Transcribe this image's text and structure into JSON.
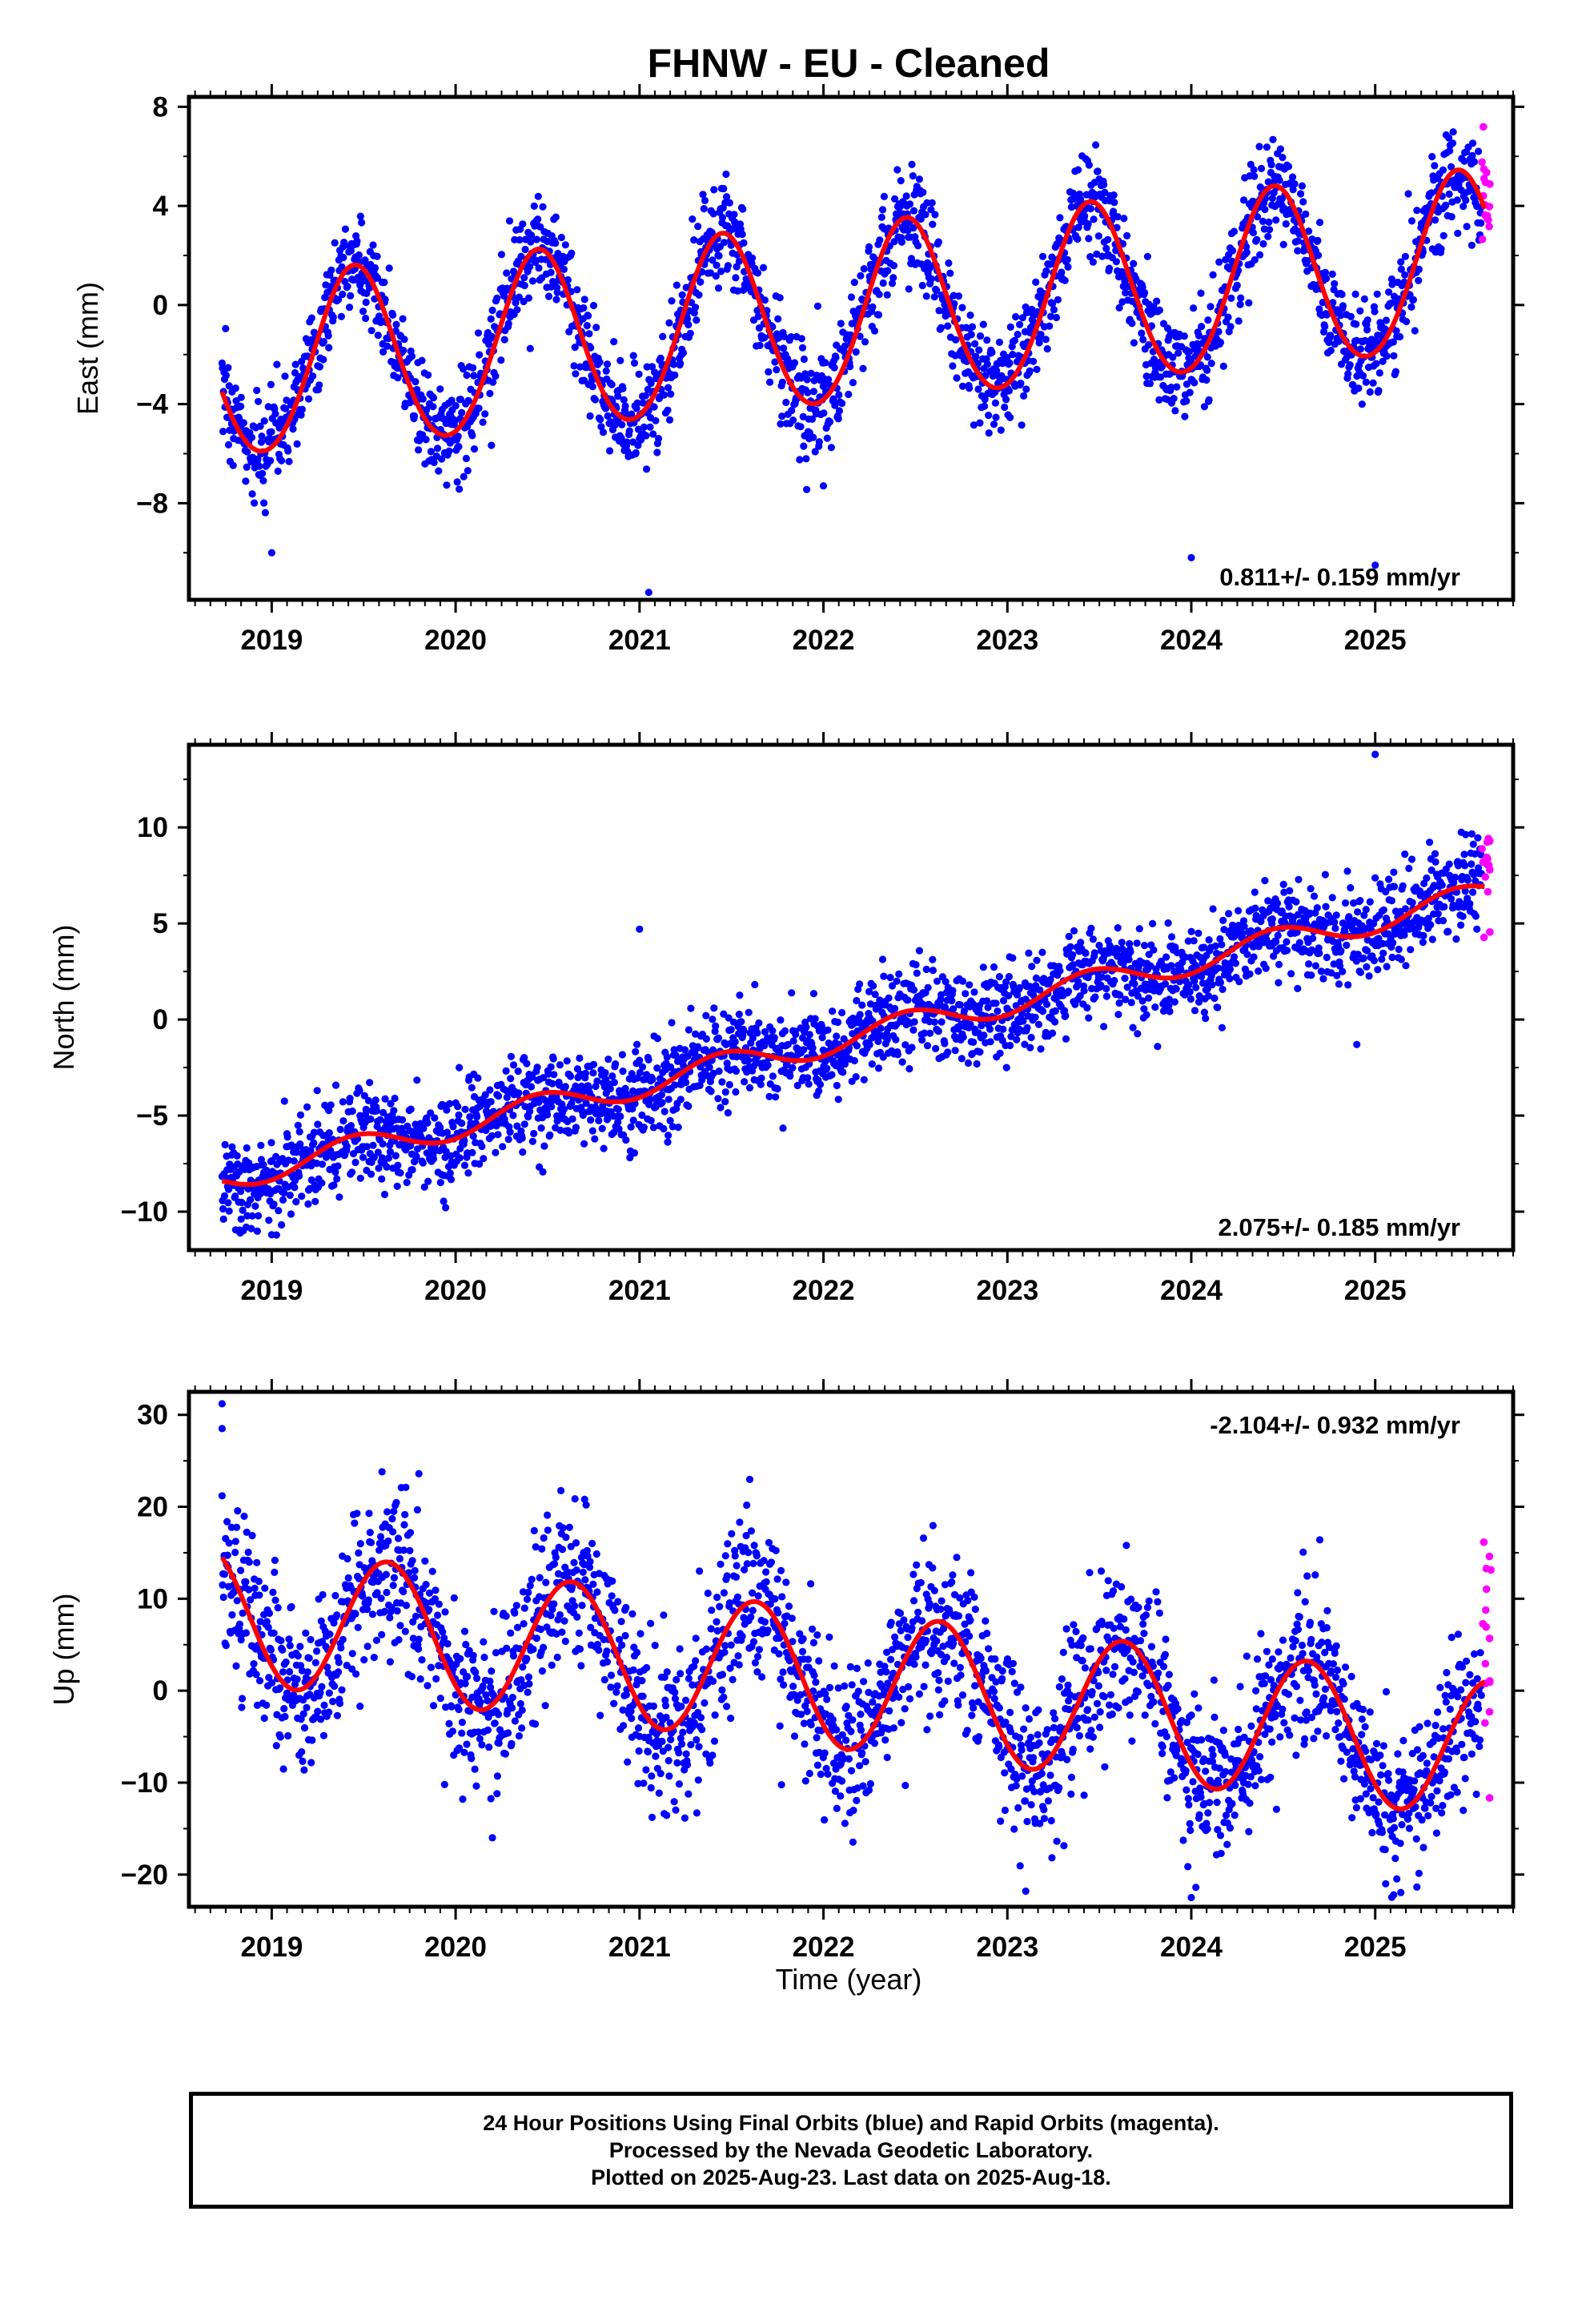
{
  "chart_data": {
    "type": "scatter",
    "title": "FHNW  - EU - Cleaned",
    "xlabel": "Time (year)",
    "xlim": [
      2018.55,
      2025.75
    ],
    "x_ticks": [
      "2019",
      "2020",
      "2021",
      "2022",
      "2023",
      "2024",
      "2025"
    ],
    "colors": {
      "final_orbits": "#0000ff",
      "rapid_orbits": "#ff00ff",
      "model_fit": "#ff0000"
    },
    "panels": [
      {
        "id": "east",
        "ylabel": "East (mm)",
        "ylim": [
          -11.9,
          8.4
        ],
        "y_ticks": [
          -8,
          -4,
          0,
          4,
          8
        ],
        "velocity_label": "0.811+/- 0.159 mm/yr",
        "trend_mm_per_yr": 0.811,
        "annual_amplitude_mm": 3.6,
        "annual_peak_month_frac": 0.45,
        "semiannual_amplitude_mm": 0.2,
        "series_start": [
          2018.73,
          -3.5
        ],
        "series_end": [
          2025.6,
          3.8
        ],
        "scatter_mm": 1.05,
        "outliers": [
          [
            2021.05,
            -11.6
          ],
          [
            2024.0,
            -10.2
          ],
          [
            2025.0,
            -10.5
          ],
          [
            2019.0,
            -10.0
          ],
          [
            2022.0,
            -7.3
          ]
        ]
      },
      {
        "id": "north",
        "ylabel": "North (mm)",
        "ylim": [
          -12.0,
          14.3
        ],
        "y_ticks": [
          -10,
          -5,
          0,
          5,
          10
        ],
        "velocity_label": "2.075+/- 0.185 mm/yr",
        "trend_mm_per_yr": 2.075,
        "annual_amplitude_mm": 0.7,
        "annual_peak_month_frac": 0.45,
        "semiannual_amplitude_mm": 0.0,
        "series_start": [
          2018.73,
          -8.4
        ],
        "series_end": [
          2025.6,
          6.9
        ],
        "scatter_mm": 1.2,
        "outliers": [
          [
            2025.0,
            13.8
          ],
          [
            2021.0,
            4.7
          ],
          [
            2024.9,
            -1.3
          ],
          [
            2019.0,
            -11.2
          ]
        ]
      },
      {
        "id": "up",
        "ylabel": "Up (mm)",
        "ylim": [
          -23.5,
          32.5
        ],
        "y_ticks": [
          -20,
          -10,
          0,
          10,
          20,
          30
        ],
        "velocity_label": "-2.104+/- 0.932 mm/yr",
        "trend_mm_per_yr": -2.104,
        "annual_amplitude_mm": 7.5,
        "annual_peak_month_frac": 0.63,
        "semiannual_amplitude_mm": 0.0,
        "series_start": [
          2018.73,
          14.5
        ],
        "series_end": [
          2025.6,
          1.0
        ],
        "scatter_mm": 4.3,
        "outliers": [
          [
            2018.73,
            31.2
          ],
          [
            2018.73,
            28.5
          ],
          [
            2019.6,
            23.8
          ],
          [
            2019.8,
            23.6
          ],
          [
            2020.2,
            -16.0
          ],
          [
            2023.1,
            -21.8
          ],
          [
            2024.0,
            -22.5
          ],
          [
            2025.1,
            -22.2
          ]
        ]
      }
    ],
    "rapid_orbits": {
      "x_range": [
        2025.58,
        2025.63
      ],
      "count": 16
    }
  },
  "caption": {
    "line1": "24 Hour Positions Using Final Orbits (blue) and Rapid Orbits (magenta).",
    "line2": "Processed by the Nevada Geodetic Laboratory.",
    "line3": "Plotted on 2025-Aug-23. Last data on 2025-Aug-18."
  }
}
